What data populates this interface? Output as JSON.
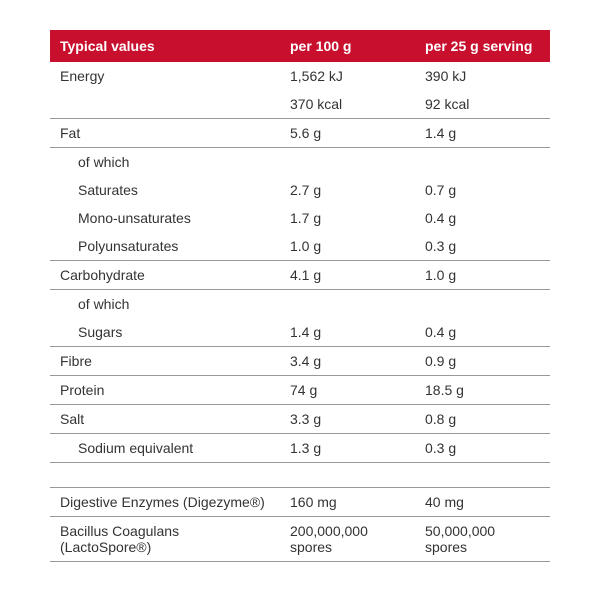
{
  "table": {
    "header": {
      "c0": "Typical values",
      "c1": "per 100 g",
      "c2": "per 25 g serving"
    },
    "rows": [
      {
        "label": "Energy",
        "v1": "1,562 kJ",
        "v2": "390 kJ",
        "indent": 0,
        "rule": false
      },
      {
        "label": "",
        "v1": "370 kcal",
        "v2": "92 kcal",
        "indent": 0,
        "rule": true
      },
      {
        "label": "Fat",
        "v1": "5.6 g",
        "v2": "1.4 g",
        "indent": 0,
        "rule": true
      },
      {
        "label": "of which",
        "v1": "",
        "v2": "",
        "indent": 1,
        "rule": false
      },
      {
        "label": "Saturates",
        "v1": "2.7 g",
        "v2": "0.7 g",
        "indent": 1,
        "rule": false
      },
      {
        "label": "Mono-unsaturates",
        "v1": "1.7 g",
        "v2": "0.4 g",
        "indent": 1,
        "rule": false
      },
      {
        "label": "Polyunsaturates",
        "v1": "1.0 g",
        "v2": "0.3 g",
        "indent": 1,
        "rule": true
      },
      {
        "label": "Carbohydrate",
        "v1": "4.1 g",
        "v2": "1.0 g",
        "indent": 0,
        "rule": true
      },
      {
        "label": "of which",
        "v1": "",
        "v2": "",
        "indent": 1,
        "rule": false
      },
      {
        "label": "Sugars",
        "v1": "1.4 g",
        "v2": "0.4 g",
        "indent": 1,
        "rule": true
      },
      {
        "label": "Fibre",
        "v1": "3.4 g",
        "v2": "0.9 g",
        "indent": 0,
        "rule": true
      },
      {
        "label": "Protein",
        "v1": "74 g",
        "v2": "18.5 g",
        "indent": 0,
        "rule": true
      },
      {
        "label": "Salt",
        "v1": "3.3 g",
        "v2": "0.8 g",
        "indent": 0,
        "rule": true
      },
      {
        "label": "Sodium equivalent",
        "v1": "1.3 g",
        "v2": "0.3 g",
        "indent": 1,
        "rule": true
      },
      {
        "spacer": true,
        "rule": true
      },
      {
        "label": "Digestive Enzymes (Digezyme®)",
        "v1": "160 mg",
        "v2": "40 mg",
        "indent": 0,
        "rule": true
      },
      {
        "label": "Bacillus Coagulans (LactoSpore®)",
        "v1": "200,000,000 spores",
        "v2": "50,000,000 spores",
        "indent": 0,
        "rule": true
      }
    ],
    "colors": {
      "header_bg": "#c8102e",
      "header_fg": "#ffffff",
      "rule": "#999999",
      "text": "#333333",
      "bg": "#ffffff"
    }
  }
}
